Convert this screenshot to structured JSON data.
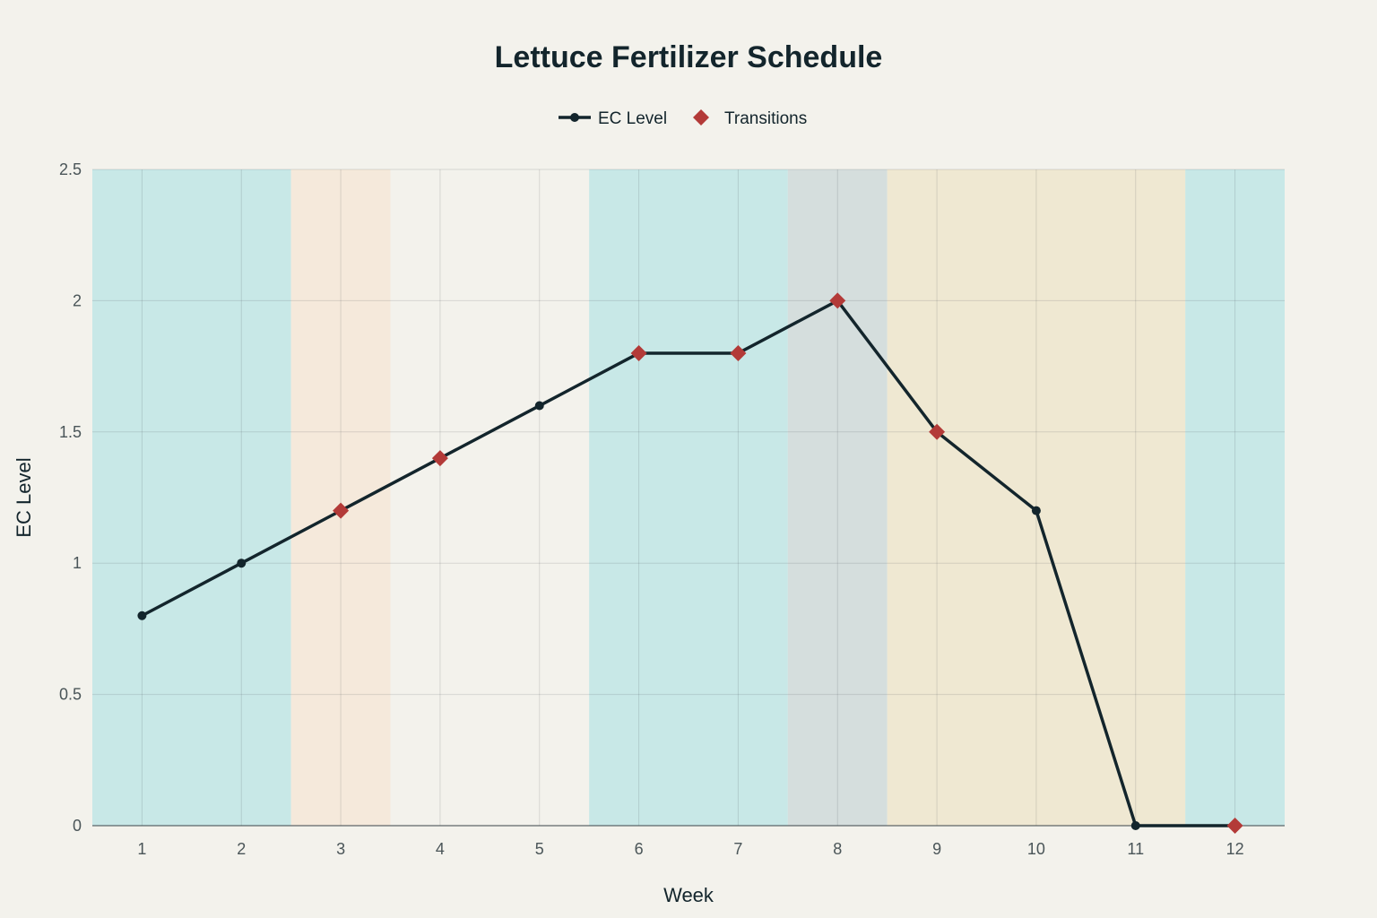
{
  "chart_data": {
    "type": "line",
    "title": "Lettuce Fertilizer Schedule",
    "xlabel": "Week",
    "ylabel": "EC Level",
    "x": [
      1,
      2,
      3,
      4,
      5,
      6,
      7,
      8,
      9,
      10,
      11,
      12
    ],
    "xlim": [
      0.5,
      12.5
    ],
    "ylim": [
      0,
      2.5
    ],
    "y_ticks": [
      0,
      0.5,
      1,
      1.5,
      2,
      2.5
    ],
    "y_tick_labels": [
      "0",
      "0.5",
      "1",
      "1.5",
      "2",
      "2.5"
    ],
    "x_tick_labels": [
      "1",
      "2",
      "3",
      "4",
      "5",
      "6",
      "7",
      "8",
      "9",
      "10",
      "11",
      "12"
    ],
    "grid": true,
    "legend_position": "top-center",
    "series": [
      {
        "name": "EC Level",
        "kind": "line+markers",
        "color": "#13252c",
        "x": [
          1,
          2,
          3,
          4,
          5,
          6,
          7,
          8,
          9,
          10,
          11,
          12
        ],
        "values": [
          0.8,
          1.0,
          1.2,
          1.4,
          1.6,
          1.8,
          1.8,
          2.0,
          1.5,
          1.2,
          0,
          0
        ]
      },
      {
        "name": "Transitions",
        "kind": "diamond-markers",
        "color": "#b33a38",
        "x": [
          3,
          4,
          6,
          7,
          8,
          9,
          12
        ],
        "values": [
          1.2,
          1.4,
          1.8,
          1.8,
          2.0,
          1.5,
          0
        ]
      }
    ],
    "background_bands": [
      {
        "from_week": 0.5,
        "to_week": 2.5,
        "color": "#c8e8e7"
      },
      {
        "from_week": 2.5,
        "to_week": 3.5,
        "color": "#f5e9db"
      },
      {
        "from_week": 3.5,
        "to_week": 5.5,
        "color": "#f3f2ec"
      },
      {
        "from_week": 5.5,
        "to_week": 7.5,
        "color": "#c8e8e7"
      },
      {
        "from_week": 7.5,
        "to_week": 8.5,
        "color": "#d5dedd"
      },
      {
        "from_week": 8.5,
        "to_week": 11.5,
        "color": "#efe8d2"
      },
      {
        "from_week": 11.5,
        "to_week": 12.5,
        "color": "#c8e8e7"
      }
    ]
  }
}
